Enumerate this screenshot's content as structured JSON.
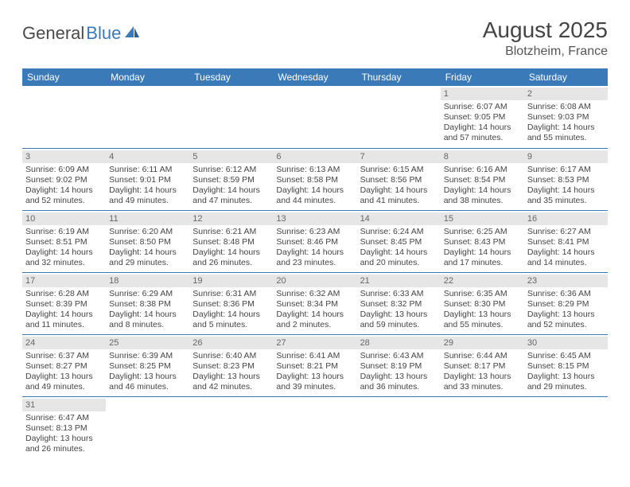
{
  "logo": {
    "part1": "General",
    "part2": "Blue"
  },
  "title": "August 2025",
  "location": "Blotzheim, France",
  "colors": {
    "header_bg": "#3a7ab8",
    "daynum_bg": "#e6e6e6",
    "row_border": "#3a7ab8"
  },
  "weekdays": [
    "Sunday",
    "Monday",
    "Tuesday",
    "Wednesday",
    "Thursday",
    "Friday",
    "Saturday"
  ],
  "weeks": [
    [
      {
        "blank": true
      },
      {
        "blank": true
      },
      {
        "blank": true
      },
      {
        "blank": true
      },
      {
        "blank": true
      },
      {
        "day": "1",
        "sunrise": "Sunrise: 6:07 AM",
        "sunset": "Sunset: 9:05 PM",
        "daylight1": "Daylight: 14 hours",
        "daylight2": "and 57 minutes."
      },
      {
        "day": "2",
        "sunrise": "Sunrise: 6:08 AM",
        "sunset": "Sunset: 9:03 PM",
        "daylight1": "Daylight: 14 hours",
        "daylight2": "and 55 minutes."
      }
    ],
    [
      {
        "day": "3",
        "sunrise": "Sunrise: 6:09 AM",
        "sunset": "Sunset: 9:02 PM",
        "daylight1": "Daylight: 14 hours",
        "daylight2": "and 52 minutes."
      },
      {
        "day": "4",
        "sunrise": "Sunrise: 6:11 AM",
        "sunset": "Sunset: 9:01 PM",
        "daylight1": "Daylight: 14 hours",
        "daylight2": "and 49 minutes."
      },
      {
        "day": "5",
        "sunrise": "Sunrise: 6:12 AM",
        "sunset": "Sunset: 8:59 PM",
        "daylight1": "Daylight: 14 hours",
        "daylight2": "and 47 minutes."
      },
      {
        "day": "6",
        "sunrise": "Sunrise: 6:13 AM",
        "sunset": "Sunset: 8:58 PM",
        "daylight1": "Daylight: 14 hours",
        "daylight2": "and 44 minutes."
      },
      {
        "day": "7",
        "sunrise": "Sunrise: 6:15 AM",
        "sunset": "Sunset: 8:56 PM",
        "daylight1": "Daylight: 14 hours",
        "daylight2": "and 41 minutes."
      },
      {
        "day": "8",
        "sunrise": "Sunrise: 6:16 AM",
        "sunset": "Sunset: 8:54 PM",
        "daylight1": "Daylight: 14 hours",
        "daylight2": "and 38 minutes."
      },
      {
        "day": "9",
        "sunrise": "Sunrise: 6:17 AM",
        "sunset": "Sunset: 8:53 PM",
        "daylight1": "Daylight: 14 hours",
        "daylight2": "and 35 minutes."
      }
    ],
    [
      {
        "day": "10",
        "sunrise": "Sunrise: 6:19 AM",
        "sunset": "Sunset: 8:51 PM",
        "daylight1": "Daylight: 14 hours",
        "daylight2": "and 32 minutes."
      },
      {
        "day": "11",
        "sunrise": "Sunrise: 6:20 AM",
        "sunset": "Sunset: 8:50 PM",
        "daylight1": "Daylight: 14 hours",
        "daylight2": "and 29 minutes."
      },
      {
        "day": "12",
        "sunrise": "Sunrise: 6:21 AM",
        "sunset": "Sunset: 8:48 PM",
        "daylight1": "Daylight: 14 hours",
        "daylight2": "and 26 minutes."
      },
      {
        "day": "13",
        "sunrise": "Sunrise: 6:23 AM",
        "sunset": "Sunset: 8:46 PM",
        "daylight1": "Daylight: 14 hours",
        "daylight2": "and 23 minutes."
      },
      {
        "day": "14",
        "sunrise": "Sunrise: 6:24 AM",
        "sunset": "Sunset: 8:45 PM",
        "daylight1": "Daylight: 14 hours",
        "daylight2": "and 20 minutes."
      },
      {
        "day": "15",
        "sunrise": "Sunrise: 6:25 AM",
        "sunset": "Sunset: 8:43 PM",
        "daylight1": "Daylight: 14 hours",
        "daylight2": "and 17 minutes."
      },
      {
        "day": "16",
        "sunrise": "Sunrise: 6:27 AM",
        "sunset": "Sunset: 8:41 PM",
        "daylight1": "Daylight: 14 hours",
        "daylight2": "and 14 minutes."
      }
    ],
    [
      {
        "day": "17",
        "sunrise": "Sunrise: 6:28 AM",
        "sunset": "Sunset: 8:39 PM",
        "daylight1": "Daylight: 14 hours",
        "daylight2": "and 11 minutes."
      },
      {
        "day": "18",
        "sunrise": "Sunrise: 6:29 AM",
        "sunset": "Sunset: 8:38 PM",
        "daylight1": "Daylight: 14 hours",
        "daylight2": "and 8 minutes."
      },
      {
        "day": "19",
        "sunrise": "Sunrise: 6:31 AM",
        "sunset": "Sunset: 8:36 PM",
        "daylight1": "Daylight: 14 hours",
        "daylight2": "and 5 minutes."
      },
      {
        "day": "20",
        "sunrise": "Sunrise: 6:32 AM",
        "sunset": "Sunset: 8:34 PM",
        "daylight1": "Daylight: 14 hours",
        "daylight2": "and 2 minutes."
      },
      {
        "day": "21",
        "sunrise": "Sunrise: 6:33 AM",
        "sunset": "Sunset: 8:32 PM",
        "daylight1": "Daylight: 13 hours",
        "daylight2": "and 59 minutes."
      },
      {
        "day": "22",
        "sunrise": "Sunrise: 6:35 AM",
        "sunset": "Sunset: 8:30 PM",
        "daylight1": "Daylight: 13 hours",
        "daylight2": "and 55 minutes."
      },
      {
        "day": "23",
        "sunrise": "Sunrise: 6:36 AM",
        "sunset": "Sunset: 8:29 PM",
        "daylight1": "Daylight: 13 hours",
        "daylight2": "and 52 minutes."
      }
    ],
    [
      {
        "day": "24",
        "sunrise": "Sunrise: 6:37 AM",
        "sunset": "Sunset: 8:27 PM",
        "daylight1": "Daylight: 13 hours",
        "daylight2": "and 49 minutes."
      },
      {
        "day": "25",
        "sunrise": "Sunrise: 6:39 AM",
        "sunset": "Sunset: 8:25 PM",
        "daylight1": "Daylight: 13 hours",
        "daylight2": "and 46 minutes."
      },
      {
        "day": "26",
        "sunrise": "Sunrise: 6:40 AM",
        "sunset": "Sunset: 8:23 PM",
        "daylight1": "Daylight: 13 hours",
        "daylight2": "and 42 minutes."
      },
      {
        "day": "27",
        "sunrise": "Sunrise: 6:41 AM",
        "sunset": "Sunset: 8:21 PM",
        "daylight1": "Daylight: 13 hours",
        "daylight2": "and 39 minutes."
      },
      {
        "day": "28",
        "sunrise": "Sunrise: 6:43 AM",
        "sunset": "Sunset: 8:19 PM",
        "daylight1": "Daylight: 13 hours",
        "daylight2": "and 36 minutes."
      },
      {
        "day": "29",
        "sunrise": "Sunrise: 6:44 AM",
        "sunset": "Sunset: 8:17 PM",
        "daylight1": "Daylight: 13 hours",
        "daylight2": "and 33 minutes."
      },
      {
        "day": "30",
        "sunrise": "Sunrise: 6:45 AM",
        "sunset": "Sunset: 8:15 PM",
        "daylight1": "Daylight: 13 hours",
        "daylight2": "and 29 minutes."
      }
    ],
    [
      {
        "day": "31",
        "sunrise": "Sunrise: 6:47 AM",
        "sunset": "Sunset: 8:13 PM",
        "daylight1": "Daylight: 13 hours",
        "daylight2": "and 26 minutes."
      },
      {
        "blank": true
      },
      {
        "blank": true
      },
      {
        "blank": true
      },
      {
        "blank": true
      },
      {
        "blank": true
      },
      {
        "blank": true
      }
    ]
  ]
}
